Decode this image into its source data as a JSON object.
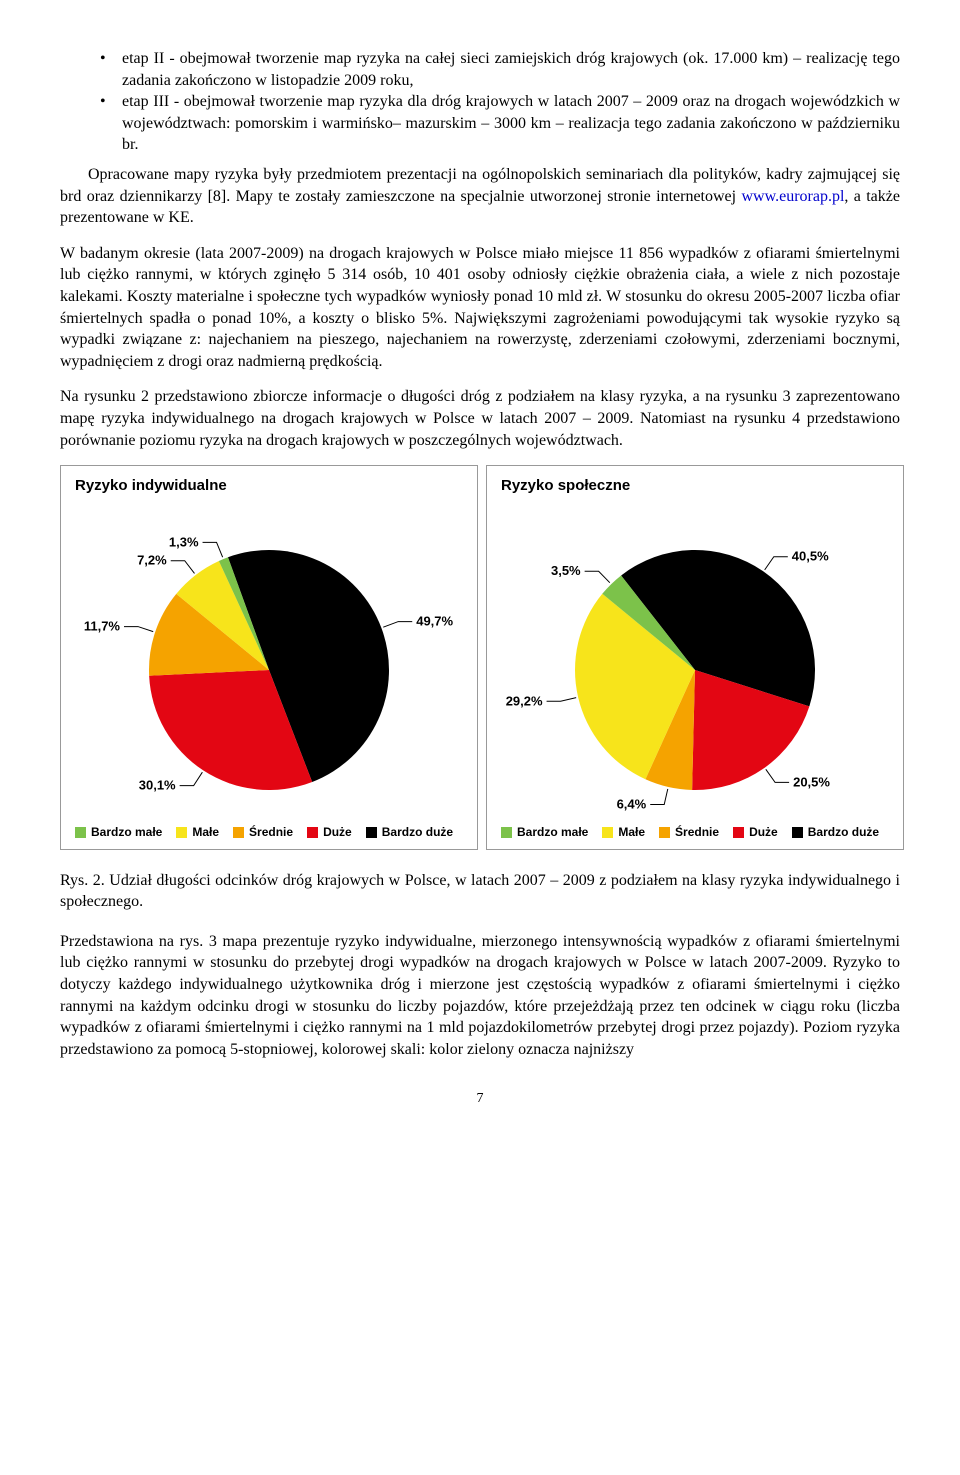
{
  "bullets": [
    "etap II - obejmował tworzenie map ryzyka na całej sieci zamiejskich dróg krajowych (ok. 17.000 km) – realizację tego zadania zakończono w listopadzie 2009 roku,",
    "etap III - obejmował tworzenie map ryzyka dla dróg krajowych w latach 2007 – 2009 oraz na drogach wojewódzkich w województwach: pomorskim i warmińsko– mazurskim – 3000 km – realizacja tego zadania zakończono w październiku br."
  ],
  "para_after_bullets_a": "Opracowane mapy ryzyka były przedmiotem prezentacji na ogólnopolskich seminariach dla polityków, kadry zajmującej się brd oraz dziennikarzy [8]. Mapy te zostały zamieszczone na specjalnie utworzonej stronie internetowej ",
  "link_text": "www.eurorap.pl",
  "para_after_bullets_b": ", a także prezentowane w KE.",
  "para2": "W badanym okresie (lata 2007-2009) na drogach krajowych w Polsce miało miejsce 11 856 wypadków z ofiarami śmiertelnymi lub ciężko rannymi, w których zginęło 5 314 osób, 10 401 osoby odniosły ciężkie obrażenia ciała, a wiele z nich pozostaje kalekami. Koszty materialne i społeczne tych wypadków wyniosły ponad 10 mld zł. W stosunku do okresu 2005-2007 liczba ofiar śmiertelnych spadła o ponad 10%, a koszty o blisko 5%. Największymi zagrożeniami powodującymi tak wysokie ryzyko są wypadki związane z: najechaniem na pieszego, najechaniem na rowerzystę, zderzeniami czołowymi, zderzeniami bocznymi, wypadnięciem z drogi oraz nadmierną prędkością.",
  "para3": "Na rysunku 2 przedstawiono zbiorcze informacje o długości dróg z podziałem na klasy ryzyka, a na rysunku 3 zaprezentowano mapę ryzyka indywidualnego na drogach krajowych w Polsce w latach 2007 – 2009. Natomiast na rysunku 4 przedstawiono porównanie poziomu ryzyka na drogach krajowych w poszczególnych województwach.",
  "legend_labels": [
    "Bardzo małe",
    "Małe",
    "Średnie",
    "Duże",
    "Bardzo duże"
  ],
  "legend_colors": [
    "#7cc24a",
    "#f7e41b",
    "#f5a300",
    "#e30613",
    "#000000"
  ],
  "chart1": {
    "title": "Ryzyko indywidualne",
    "type": "pie",
    "slices": [
      {
        "label": "49,7%",
        "value": 49.7,
        "color": "#000000"
      },
      {
        "label": "30,1%",
        "value": 30.1,
        "color": "#e30613"
      },
      {
        "label": "11,7%",
        "value": 11.7,
        "color": "#f5a300"
      },
      {
        "label": "7,2%",
        "value": 7.2,
        "color": "#f7e41b"
      },
      {
        "label": "1,3%",
        "value": 1.3,
        "color": "#7cc24a"
      }
    ],
    "start_angle_deg": 250
  },
  "chart2": {
    "title": "Ryzyko społeczne",
    "type": "pie",
    "slices": [
      {
        "label": "40,5%",
        "value": 40.5,
        "color": "#000000"
      },
      {
        "label": "20,5%",
        "value": 20.5,
        "color": "#e30613"
      },
      {
        "label": "6,4%",
        "value": 6.4,
        "color": "#f5a300"
      },
      {
        "label": "29,2%",
        "value": 29.2,
        "color": "#f7e41b"
      },
      {
        "label": "3,5%",
        "value": 3.5,
        "color": "#7cc24a"
      }
    ],
    "start_angle_deg": 232
  },
  "caption": "Rys. 2. Udział długości odcinków dróg krajowych w Polsce, w latach 2007 – 2009 z podziałem na klasy ryzyka indywidualnego i społecznego.",
  "para4": "Przedstawiona na rys. 3 mapa prezentuje  ryzyko indywidualne, mierzonego intensywnością wypadków z ofiarami śmiertelnymi lub ciężko rannymi w stosunku do przebytej drogi wypadków na drogach krajowych w Polsce w latach 2007-2009. Ryzyko to dotyczy każdego indywidualnego użytkownika dróg i mierzone jest częstością wypadków z ofiarami śmiertelnymi i ciężko rannymi na każdym odcinku drogi w stosunku do liczby pojazdów, które przejeżdżają przez ten odcinek w ciągu roku (liczba wypadków z ofiarami śmiertelnymi i ciężko rannymi na 1 mld pojazdokilometrów przebytej drogi przez pojazdy). Poziom ryzyka przedstawiono za pomocą 5-stopniowej, kolorowej skali: kolor zielony oznacza najniższy",
  "page_number": "7"
}
